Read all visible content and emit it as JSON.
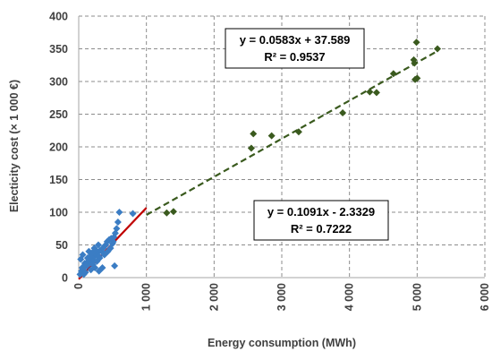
{
  "chart_data": {
    "type": "scatter",
    "title": "",
    "xlabel": "Energy consumption (MWh)",
    "ylabel": "Electicity cost (× 1 000 €)",
    "xlim": [
      0,
      6000
    ],
    "ylim": [
      0,
      400
    ],
    "x_ticks": [
      0,
      1000,
      2000,
      3000,
      4000,
      5000,
      6000
    ],
    "x_tick_labels": [
      "0",
      "1 000",
      "2 000",
      "3 000",
      "4 000",
      "5 000",
      "6 000"
    ],
    "y_ticks": [
      0,
      50,
      100,
      150,
      200,
      250,
      300,
      350,
      400
    ],
    "y_tick_labels": [
      "0",
      "50",
      "100",
      "150",
      "200",
      "250",
      "300",
      "350",
      "400"
    ],
    "grid": "both-dashed",
    "series": [
      {
        "color": "#3b7dc4",
        "marker": "diamond",
        "points": [
          [
            20,
            5
          ],
          [
            40,
            10
          ],
          [
            60,
            12
          ],
          [
            80,
            15
          ],
          [
            100,
            20
          ],
          [
            120,
            18
          ],
          [
            140,
            25
          ],
          [
            160,
            22
          ],
          [
            180,
            28
          ],
          [
            200,
            30
          ],
          [
            220,
            26
          ],
          [
            240,
            33
          ],
          [
            260,
            35
          ],
          [
            280,
            38
          ],
          [
            300,
            32
          ],
          [
            320,
            42
          ],
          [
            340,
            40
          ],
          [
            360,
            45
          ],
          [
            380,
            48
          ],
          [
            400,
            50
          ],
          [
            420,
            55
          ],
          [
            450,
            58
          ],
          [
            480,
            60
          ],
          [
            500,
            52
          ],
          [
            520,
            62
          ],
          [
            540,
            68
          ],
          [
            560,
            75
          ],
          [
            580,
            85
          ],
          [
            600,
            100
          ],
          [
            800,
            98
          ],
          [
            30,
            28
          ],
          [
            60,
            35
          ],
          [
            150,
            40
          ],
          [
            200,
            38
          ],
          [
            250,
            42
          ],
          [
            300,
            10
          ],
          [
            350,
            15
          ],
          [
            530,
            18
          ],
          [
            100,
            8
          ],
          [
            180,
            12
          ],
          [
            50,
            15
          ],
          [
            90,
            22
          ],
          [
            130,
            30
          ],
          [
            210,
            20
          ],
          [
            270,
            25
          ],
          [
            310,
            30
          ],
          [
            380,
            35
          ],
          [
            430,
            40
          ],
          [
            470,
            45
          ],
          [
            510,
            55
          ],
          [
            160,
            32
          ],
          [
            230,
            45
          ],
          [
            290,
            50
          ],
          [
            240,
            15
          ],
          [
            75,
            5
          ],
          [
            110,
            18
          ]
        ],
        "trendline": {
          "equation": "y = 0.1091x - 2.3329",
          "r2": "R² = 0.7222",
          "slope": 0.1091,
          "intercept": -2.3329,
          "x_range": [
            0,
            1000
          ],
          "color": "#c00000",
          "style": "solid"
        }
      },
      {
        "color": "#3a5a1e",
        "marker": "diamond",
        "points": [
          [
            1300,
            99
          ],
          [
            1400,
            101
          ],
          [
            2550,
            198
          ],
          [
            2580,
            220
          ],
          [
            2850,
            217
          ],
          [
            3250,
            223
          ],
          [
            3900,
            252
          ],
          [
            4300,
            284
          ],
          [
            4400,
            283
          ],
          [
            4650,
            312
          ],
          [
            4950,
            333
          ],
          [
            4960,
            328
          ],
          [
            4970,
            303
          ],
          [
            4990,
            360
          ],
          [
            5000,
            305
          ],
          [
            5300,
            350
          ]
        ],
        "trendline": {
          "equation": "y = 0.0583x + 37.589",
          "r2": "R² = 0.9537",
          "slope": 0.0583,
          "intercept": 37.589,
          "x_range": [
            1000,
            5300
          ],
          "color": "#3a5a1e",
          "style": "dashed"
        }
      }
    ]
  }
}
